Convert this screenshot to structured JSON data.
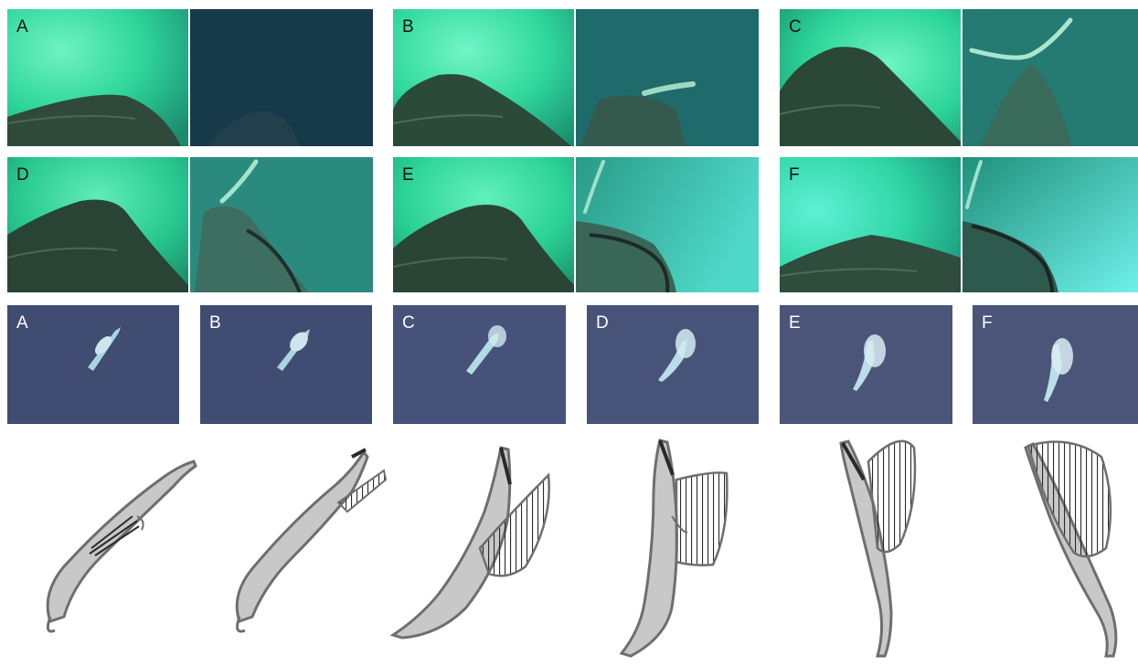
{
  "figure": {
    "camera_row1": {
      "labels": [
        "A",
        "B",
        "C"
      ]
    },
    "camera_row2": {
      "labels": [
        "D",
        "E",
        "F"
      ]
    },
    "drone_row": {
      "labels": [
        "A",
        "B",
        "C",
        "D",
        "E",
        "F"
      ]
    },
    "colors": {
      "water_bright": "#33e6aa",
      "water_dark": "#14404a",
      "drone_water": "#414c72",
      "whale_fill": "#c8c8c8",
      "whale_outline": "#6e6e6e",
      "pleats": "#2a2a2a"
    }
  }
}
